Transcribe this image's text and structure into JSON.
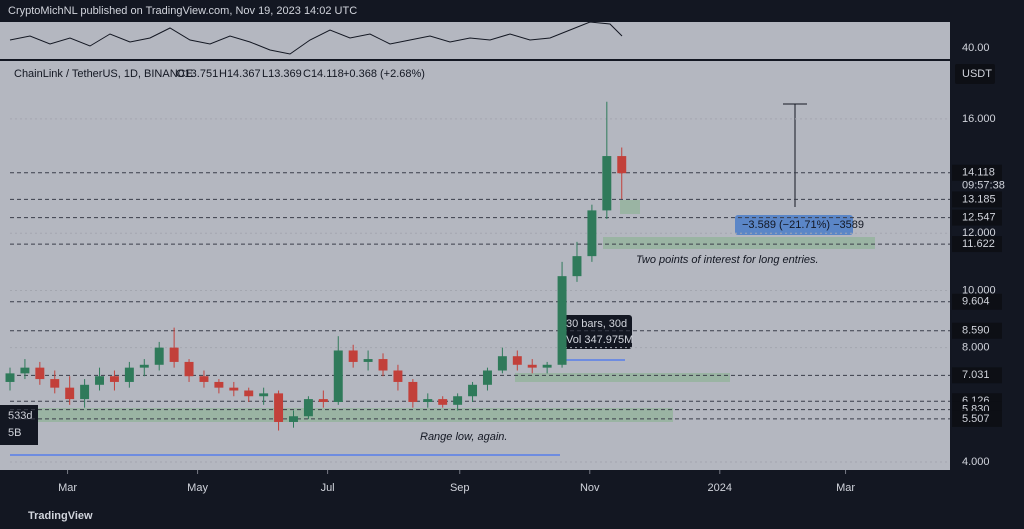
{
  "header": {
    "publisher": "CryptoMichNL published on TradingView.com, Nov 19, 2023 14:02 UTC"
  },
  "oscillator": {
    "tick": "40.00"
  },
  "chart_data": {
    "type": "candlestick",
    "legend": {
      "symbol": "ChainLink / TetherUS, 1D, BINANCE",
      "open": "O13.751",
      "high": "H14.367",
      "low": "L13.369",
      "close": "C14.118",
      "change": "+0.368 (+2.68%)"
    },
    "currency": "USDT",
    "x": [
      32,
      39,
      46,
      53,
      60,
      67,
      74,
      81,
      88,
      95,
      102,
      109,
      116,
      123,
      130,
      137,
      144,
      151,
      158,
      165,
      172,
      179,
      186,
      193,
      200,
      207,
      214,
      221,
      228,
      235,
      242,
      249,
      256,
      263,
      270,
      277,
      284,
      291,
      298,
      305,
      312,
      319
    ],
    "open": [
      6.8,
      7.1,
      7.3,
      6.9,
      6.6,
      6.2,
      6.7,
      7.0,
      6.8,
      7.3,
      7.4,
      8.0,
      7.5,
      7.0,
      6.8,
      6.6,
      6.5,
      6.3,
      6.4,
      5.4,
      5.6,
      6.2,
      6.1,
      7.9,
      7.5,
      7.6,
      7.2,
      6.8,
      6.1,
      6.2,
      6.0,
      6.3,
      6.7,
      7.2,
      7.7,
      7.4,
      7.3,
      7.4,
      10.5,
      11.2,
      12.8,
      14.7
    ],
    "high": [
      7.3,
      7.6,
      7.5,
      7.2,
      7.0,
      6.9,
      7.3,
      7.2,
      7.5,
      7.6,
      8.2,
      8.7,
      7.6,
      7.2,
      6.9,
      6.8,
      6.6,
      6.6,
      6.5,
      5.8,
      6.3,
      6.5,
      8.4,
      8.1,
      7.9,
      7.8,
      7.4,
      6.9,
      6.4,
      6.3,
      6.4,
      6.8,
      7.3,
      8.0,
      7.9,
      7.6,
      7.5,
      11.0,
      11.7,
      13.0,
      16.6,
      15.0
    ],
    "low": [
      6.5,
      6.9,
      6.7,
      6.4,
      6.0,
      5.9,
      6.5,
      6.5,
      6.6,
      7.0,
      7.2,
      7.3,
      6.8,
      6.6,
      6.4,
      6.3,
      6.1,
      6.0,
      5.1,
      5.2,
      5.5,
      5.9,
      6.0,
      7.3,
      7.2,
      7.0,
      6.5,
      5.9,
      5.9,
      5.9,
      5.8,
      6.1,
      6.5,
      7.1,
      7.2,
      7.1,
      7.1,
      7.3,
      10.3,
      11.0,
      12.5,
      13.2
    ],
    "close": [
      7.1,
      7.3,
      6.9,
      6.6,
      6.2,
      6.7,
      7.0,
      6.8,
      7.3,
      7.4,
      8.0,
      7.5,
      7.0,
      6.8,
      6.6,
      6.5,
      6.3,
      6.4,
      5.4,
      5.6,
      6.2,
      6.1,
      7.9,
      7.5,
      7.6,
      7.2,
      6.8,
      6.1,
      6.2,
      6.0,
      6.3,
      6.7,
      7.2,
      7.7,
      7.4,
      7.3,
      7.4,
      10.5,
      11.2,
      12.8,
      14.7,
      14.1
    ],
    "up_color": "#2f7a5a",
    "down_color": "#c2403a",
    "xlim": [
      32,
      473
    ],
    "xticks": [
      {
        "value": 59,
        "label": "Mar"
      },
      {
        "value": 120,
        "label": "May"
      },
      {
        "value": 181,
        "label": "Jul"
      },
      {
        "value": 243,
        "label": "Sep"
      },
      {
        "value": 304,
        "label": "Nov"
      },
      {
        "value": 365,
        "label": "2024"
      },
      {
        "value": 424,
        "label": "Mar"
      }
    ],
    "ylim": [
      3.72,
      18.06
    ],
    "yticks": [
      {
        "value": 16,
        "label": "16.000"
      },
      {
        "value": 12,
        "label": "12.000"
      },
      {
        "value": 10,
        "label": "10.000"
      },
      {
        "value": 8,
        "label": "8.000"
      },
      {
        "value": 4,
        "label": "4.000"
      }
    ],
    "levels": [
      14.118,
      13.185,
      12.547,
      11.622,
      9.604,
      {
        "value": 8.59,
        "label": "8.590"
      },
      7.031,
      6.126,
      {
        "value": 5.83,
        "label": "5.830"
      },
      5.507
    ],
    "countdown": "09:57:38",
    "annotations": {
      "measure": "−3.589 (−21.71%) −3589",
      "interest": "Two points of interest for long entries.",
      "bars": "30 bars, 30d",
      "vol": "Vol 347.975M",
      "range": "Range low, again.",
      "left1": "533d",
      "left2": "5B"
    }
  },
  "footer": {
    "brand": "TradingView"
  }
}
